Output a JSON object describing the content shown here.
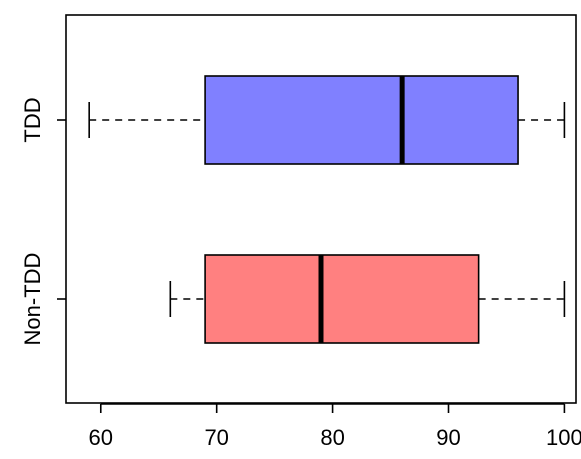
{
  "chart_data": {
    "type": "boxplot",
    "orientation": "horizontal",
    "title": "",
    "xlabel": "",
    "ylabel": "",
    "xlim": [
      57,
      101
    ],
    "x_ticks": [
      60,
      70,
      80,
      90,
      100
    ],
    "grid": false,
    "legend": "none",
    "series": [
      {
        "label": "TDD",
        "color": "#8080ff",
        "whisker_low": 59,
        "q1": 69,
        "median": 86,
        "q3": 96,
        "whisker_high": 100
      },
      {
        "label": "Non-TDD",
        "color": "#ff8080",
        "whisker_low": 66,
        "q1": 69,
        "median": 79,
        "q3": 92.6,
        "whisker_high": 100
      }
    ]
  }
}
